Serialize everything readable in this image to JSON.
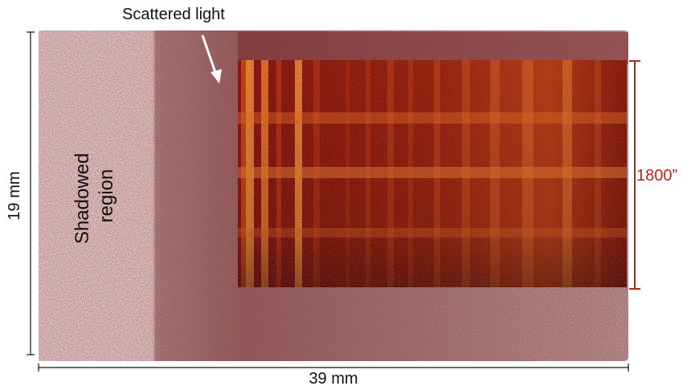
{
  "annotations": {
    "scattered_light": "Scattered light",
    "height": "19 mm",
    "width": "39 mm",
    "shadowed_region": [
      "Shadowed",
      "region"
    ],
    "angular_extent": "1800”"
  }
}
